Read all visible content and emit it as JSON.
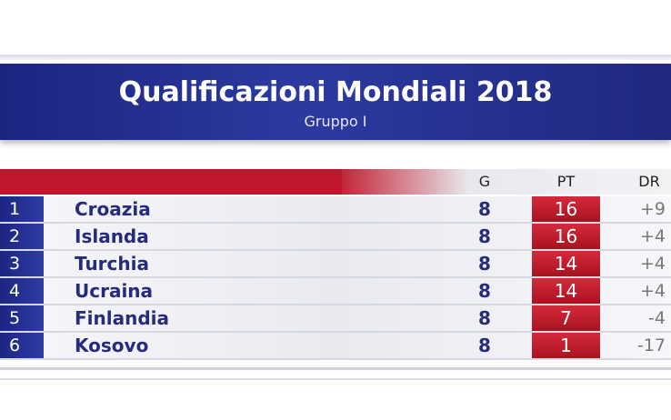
{
  "header": {
    "title": "Qualificazioni Mondiali 2018",
    "subtitle": "Gruppo I"
  },
  "table": {
    "columns": [
      "G",
      "PT",
      "DR"
    ],
    "rows": [
      [
        1,
        "Croazia",
        8,
        16,
        "+9"
      ],
      [
        2,
        "Islanda",
        8,
        16,
        "+4"
      ],
      [
        3,
        "Turchia",
        8,
        14,
        "+4"
      ],
      [
        4,
        "Ucraina",
        8,
        14,
        "+4"
      ],
      [
        5,
        "Finlandia",
        8,
        7,
        "-4"
      ],
      [
        6,
        "Kosovo",
        8,
        1,
        "-17"
      ]
    ]
  }
}
